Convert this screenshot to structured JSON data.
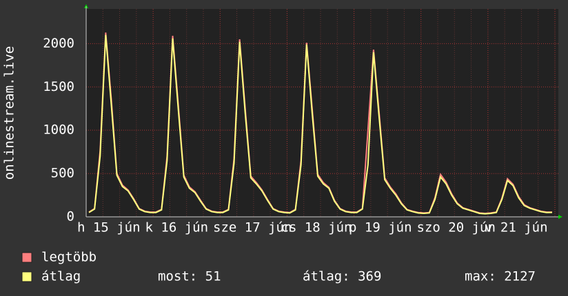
{
  "chart_data": {
    "type": "line",
    "y_label": "onlinestream.live",
    "x_labels": [
      "h 15 jún",
      "k 16 jún",
      "sze 17 jún",
      "cs 18 jún",
      "p 19 jún",
      "szo 20 jún",
      "v 21 jún"
    ],
    "ylim": [
      0,
      2400
    ],
    "yticks": [
      0,
      500,
      1000,
      1500,
      2000
    ],
    "grid": true,
    "series": [
      {
        "name": "legtöbb",
        "color": "#ff7f7f",
        "values": [
          55,
          95,
          760,
          2127,
          1360,
          500,
          365,
          310,
          210,
          95,
          65,
          55,
          55,
          85,
          700,
          2090,
          1300,
          480,
          345,
          290,
          190,
          95,
          65,
          55,
          55,
          85,
          670,
          2050,
          1250,
          470,
          395,
          310,
          200,
          95,
          65,
          55,
          50,
          85,
          650,
          2010,
          1250,
          490,
          395,
          340,
          190,
          95,
          65,
          55,
          55,
          95,
          1000,
          1930,
          1200,
          450,
          345,
          265,
          160,
          85,
          65,
          50,
          45,
          50,
          220,
          490,
          400,
          265,
          160,
          105,
          85,
          65,
          45,
          40,
          45,
          55,
          215,
          440,
          375,
          235,
          140,
          105,
          85,
          65,
          55,
          55
        ]
      },
      {
        "name": "átlag",
        "color": "#ffff7f",
        "values": [
          50,
          90,
          700,
          2100,
          1300,
          480,
          350,
          300,
          200,
          90,
          60,
          50,
          50,
          80,
          650,
          2060,
          1250,
          460,
          330,
          280,
          180,
          90,
          60,
          50,
          50,
          80,
          620,
          2020,
          1200,
          450,
          380,
          300,
          190,
          90,
          60,
          50,
          45,
          80,
          600,
          1990,
          1200,
          470,
          380,
          330,
          180,
          90,
          60,
          50,
          50,
          90,
          600,
          1900,
          1150,
          430,
          330,
          250,
          150,
          80,
          60,
          45,
          40,
          45,
          200,
          460,
          380,
          250,
          150,
          100,
          80,
          60,
          40,
          35,
          40,
          50,
          200,
          420,
          360,
          220,
          130,
          100,
          80,
          60,
          50,
          51
        ]
      }
    ],
    "stats": [
      "most: 51",
      "átlag: 369",
      "max: 2127"
    ]
  }
}
